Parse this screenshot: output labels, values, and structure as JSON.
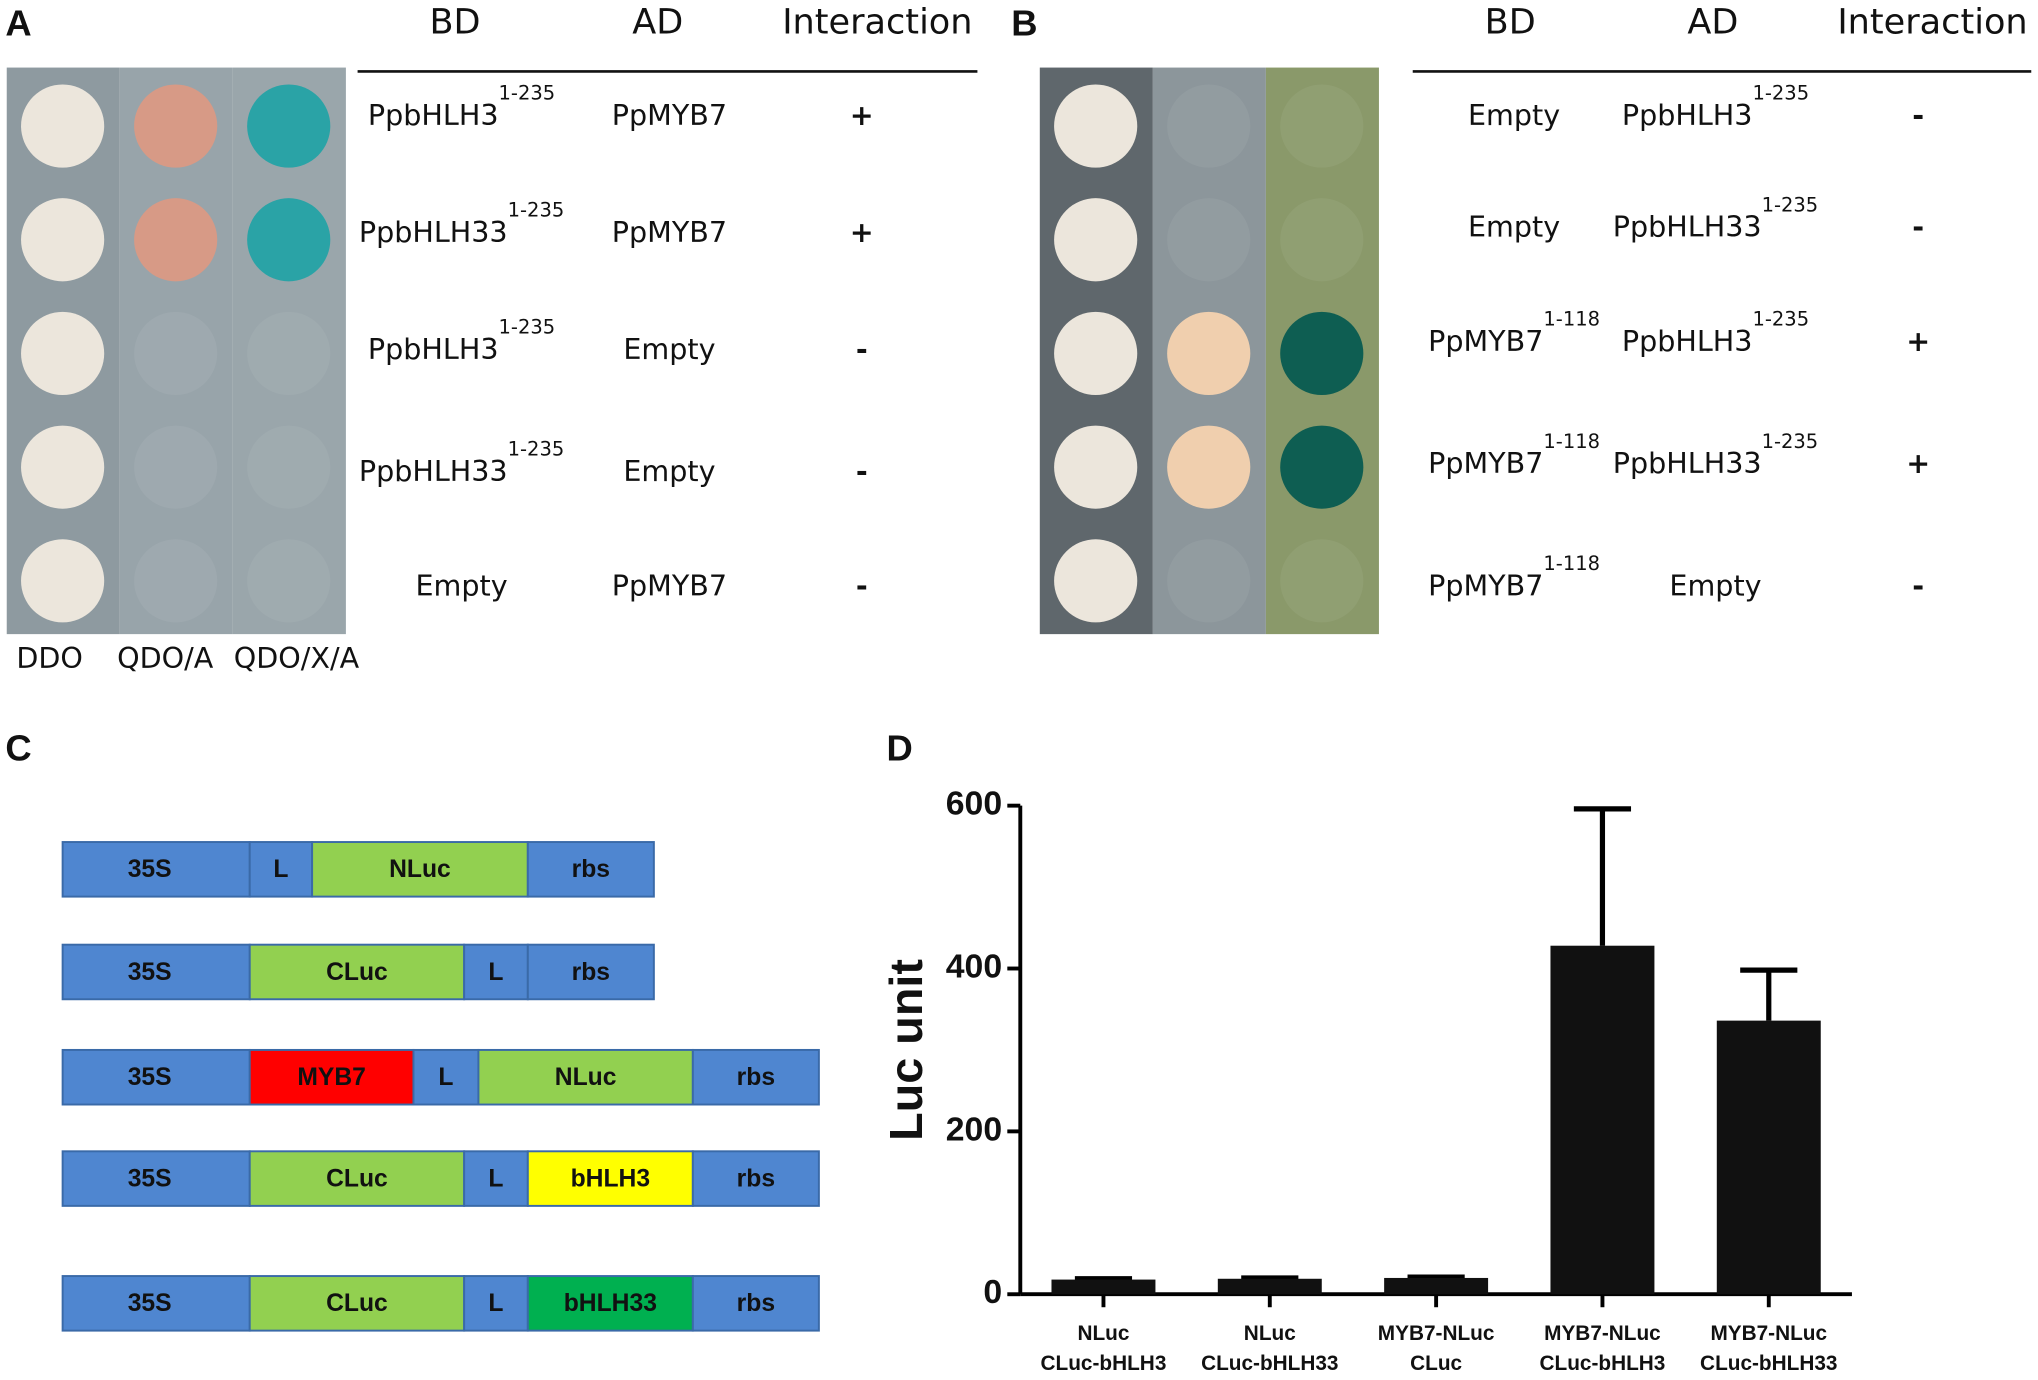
{
  "panels": [
    "A",
    "B",
    "C",
    "D"
  ],
  "panel_a": {
    "plate_labels": [
      "DDO",
      "QDO/A",
      "QDO/X/A"
    ],
    "headers": [
      "BD",
      "AD",
      "Interaction"
    ],
    "rows": [
      {
        "bd": "PpbHLH3",
        "bd_sup": "1-235",
        "ad": "PpMYB7",
        "interaction": "+"
      },
      {
        "bd": "PpbHLH33",
        "bd_sup": "1-235",
        "ad": "PpMYB7",
        "interaction": "+"
      },
      {
        "bd": "PpbHLH3",
        "bd_sup": "1-235",
        "ad": "Empty",
        "interaction": "-"
      },
      {
        "bd": "PpbHLH33",
        "bd_sup": "1-235",
        "ad": "Empty",
        "interaction": "-"
      },
      {
        "bd": "Empty",
        "ad": "PpMYB7",
        "interaction": "-"
      }
    ]
  },
  "panel_b": {
    "headers": [
      "BD",
      "AD",
      "Interaction"
    ],
    "rows": [
      {
        "bd": "Empty",
        "ad": "PpbHLH3",
        "ad_sup": "1-235",
        "interaction": "-"
      },
      {
        "bd": "Empty",
        "ad": "PpbHLH33",
        "ad_sup": "1-235",
        "interaction": "-"
      },
      {
        "bd": "PpMYB7",
        "bd_sup": "1-118",
        "ad": "PpbHLH3",
        "ad_sup": "1-235",
        "interaction": "+"
      },
      {
        "bd": "PpMYB7",
        "bd_sup": "1-118",
        "ad": "PpbHLH33",
        "ad_sup": "1-235",
        "interaction": "+"
      },
      {
        "bd": "PpMYB7",
        "bd_sup": "1-118",
        "ad": "Empty",
        "interaction": "-"
      }
    ]
  },
  "panel_c": {
    "constructs": [
      {
        "segments": [
          {
            "label": "35S",
            "color": "#4f86d0"
          },
          {
            "label": "L",
            "color": "#4f86d0"
          },
          {
            "label": "NLuc",
            "color": "#92d050"
          },
          {
            "label": "rbs",
            "color": "#4f86d0"
          }
        ]
      },
      {
        "segments": [
          {
            "label": "35S",
            "color": "#4f86d0"
          },
          {
            "label": "CLuc",
            "color": "#92d050"
          },
          {
            "label": "L",
            "color": "#4f86d0"
          },
          {
            "label": "rbs",
            "color": "#4f86d0"
          }
        ]
      },
      {
        "segments": [
          {
            "label": "35S",
            "color": "#4f86d0"
          },
          {
            "label": "MYB7",
            "color": "#ff0000"
          },
          {
            "label": "L",
            "color": "#4f86d0"
          },
          {
            "label": "NLuc",
            "color": "#92d050"
          },
          {
            "label": "rbs",
            "color": "#4f86d0"
          }
        ]
      },
      {
        "segments": [
          {
            "label": "35S",
            "color": "#4f86d0"
          },
          {
            "label": "CLuc",
            "color": "#92d050"
          },
          {
            "label": "L",
            "color": "#4f86d0"
          },
          {
            "label": "bHLH3",
            "color": "#ffff00"
          },
          {
            "label": "rbs",
            "color": "#4f86d0"
          }
        ]
      },
      {
        "segments": [
          {
            "label": "35S",
            "color": "#4f86d0"
          },
          {
            "label": "CLuc",
            "color": "#92d050"
          },
          {
            "label": "L",
            "color": "#4f86d0"
          },
          {
            "label": "bHLH33",
            "color": "#00b050"
          },
          {
            "label": "rbs",
            "color": "#4f86d0"
          }
        ]
      }
    ]
  },
  "chart_data": {
    "type": "bar",
    "ylabel": "Luc unit",
    "categories": [
      [
        "NLuc",
        "CLuc-bHLH3"
      ],
      [
        "NLuc",
        "CLuc-bHLH33"
      ],
      [
        "MYB7-NLuc",
        "CLuc"
      ],
      [
        "MYB7-NLuc",
        "CLuc-bHLH3"
      ],
      [
        "MYB7-NLuc",
        "CLuc-bHLH33"
      ]
    ],
    "values": [
      18,
      19,
      20,
      428,
      336
    ],
    "errors": [
      1,
      1,
      1,
      168,
      62
    ],
    "color": "#111111",
    "ylim": [
      0,
      600
    ],
    "yticks": [
      0,
      200,
      400,
      600
    ]
  }
}
